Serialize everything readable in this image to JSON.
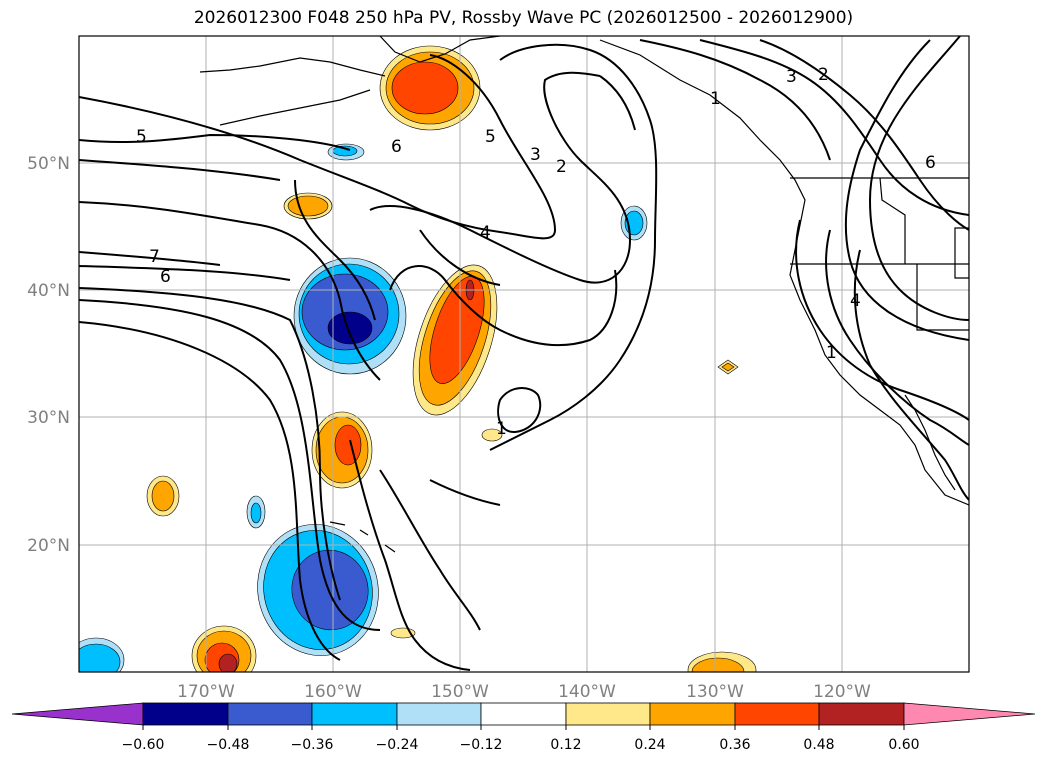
{
  "title": "2026012300 F048 250 hPa PV, Rossby Wave PC (2026012500 - 2026012900)",
  "map": {
    "projection": "PlateCarree",
    "lon_range": [
      -180,
      -110
    ],
    "lat_range": [
      10,
      60
    ],
    "lat_ticks": [
      {
        "value": 50,
        "label": "50°N"
      },
      {
        "value": 40,
        "label": "40°N"
      },
      {
        "value": 30,
        "label": "30°N"
      },
      {
        "value": 20,
        "label": "20°N"
      }
    ],
    "lon_ticks": [
      {
        "value": -170,
        "label": "170°W"
      },
      {
        "value": -160,
        "label": "160°W"
      },
      {
        "value": -150,
        "label": "150°W"
      },
      {
        "value": -140,
        "label": "140°W"
      },
      {
        "value": -130,
        "label": "130°W"
      },
      {
        "value": -120,
        "label": "120°W"
      }
    ],
    "pv_contour_labels": [
      "5",
      "6",
      "5",
      "3",
      "2",
      "4",
      "7",
      "6",
      "3",
      "2",
      "1",
      "6",
      "4",
      "1",
      "1"
    ]
  },
  "colorbar": {
    "levels": [
      "−0.60",
      "−0.48",
      "−0.36",
      "−0.24",
      "−0.12",
      "0.12",
      "0.24",
      "0.36",
      "0.48",
      "0.60"
    ],
    "colors": {
      "below": "#9932cc",
      "b1": "#00008b",
      "b2": "#3a5bcf",
      "b3": "#00bfff",
      "b4": "#b0e0f8",
      "b5": "#ffffff",
      "b6": "#ffe88a",
      "b7": "#ffa500",
      "b8": "#ff4500",
      "b9": "#b22222",
      "above": "#ff88b0"
    }
  }
}
